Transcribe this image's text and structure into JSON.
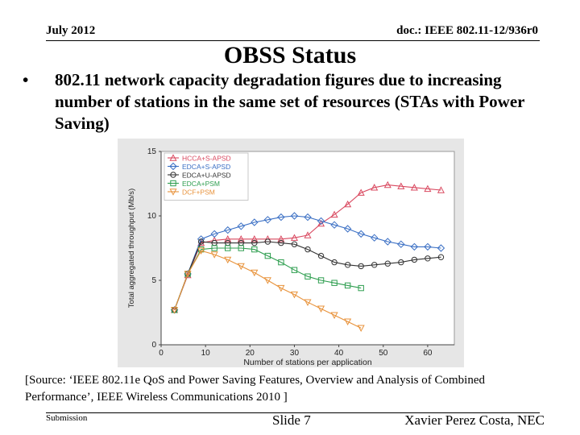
{
  "header": {
    "date": "July 2012",
    "doc": "doc.: IEEE 802.11-12/936r0"
  },
  "slide": {
    "title": "OBSS Status",
    "bullet_char": "•",
    "bullet": "802.11 network capacity degradation figures due to increasing number of stations in the same set of resources (STAs with Power Saving)",
    "source": "[Source: ‘IEEE 802.11e QoS and Power Saving Features, Overview and Analysis of Combined Performance’, IEEE Wireless Communications 2010 ]"
  },
  "footer": {
    "submission": "Submission",
    "slide": "Slide 7",
    "author": "Xavier Perez Costa, NEC"
  },
  "chart_data": {
    "type": "line",
    "xlabel": "Number of stations per application",
    "ylabel": "Total aggregated throughput (Mb/s)",
    "xlim": [
      0,
      66
    ],
    "ylim": [
      0,
      15
    ],
    "xticks": [
      0,
      10,
      20,
      30,
      40,
      50,
      60
    ],
    "yticks": [
      0,
      5,
      10,
      15
    ],
    "legend_position": "top-left",
    "series": [
      {
        "name": "HCCA+S-APSD",
        "color": "#d9485f",
        "marker": "triangle-up",
        "x": [
          3,
          6,
          9,
          12,
          15,
          18,
          21,
          24,
          27,
          30,
          33,
          36,
          39,
          42,
          45,
          48,
          51,
          54,
          57,
          60,
          63
        ],
        "y": [
          2.7,
          5.4,
          7.9,
          8.1,
          8.2,
          8.2,
          8.2,
          8.2,
          8.2,
          8.3,
          8.5,
          9.4,
          10.1,
          10.9,
          11.8,
          12.2,
          12.4,
          12.3,
          12.2,
          12.1,
          12.0
        ]
      },
      {
        "name": "EDCA+S-APSD",
        "color": "#3a6fc4",
        "marker": "diamond",
        "x": [
          3,
          6,
          9,
          12,
          15,
          18,
          21,
          24,
          27,
          30,
          33,
          36,
          39,
          42,
          45,
          48,
          51,
          54,
          57,
          60,
          63
        ],
        "y": [
          2.7,
          5.5,
          8.2,
          8.6,
          8.9,
          9.2,
          9.5,
          9.7,
          9.9,
          10.0,
          9.9,
          9.6,
          9.3,
          9.0,
          8.6,
          8.3,
          8.0,
          7.8,
          7.6,
          7.6,
          7.5
        ]
      },
      {
        "name": "EDCA+U-APSD",
        "color": "#333333",
        "marker": "circle",
        "x": [
          3,
          6,
          9,
          12,
          15,
          18,
          21,
          24,
          27,
          30,
          33,
          36,
          39,
          42,
          45,
          48,
          51,
          54,
          57,
          60,
          63
        ],
        "y": [
          2.7,
          5.5,
          8.0,
          7.9,
          7.9,
          7.9,
          7.9,
          8.0,
          7.9,
          7.8,
          7.4,
          6.9,
          6.4,
          6.2,
          6.1,
          6.2,
          6.3,
          6.4,
          6.6,
          6.7,
          6.8
        ]
      },
      {
        "name": "EDCA+PSM",
        "color": "#2e9e4f",
        "marker": "square",
        "x": [
          3,
          6,
          9,
          12,
          15,
          18,
          21,
          24,
          27,
          30,
          33,
          36,
          39,
          42,
          45
        ],
        "y": [
          2.7,
          5.5,
          7.4,
          7.5,
          7.5,
          7.5,
          7.4,
          6.9,
          6.4,
          5.8,
          5.3,
          5.0,
          4.8,
          4.6,
          4.4
        ]
      },
      {
        "name": "DCF+PSM",
        "color": "#e8923a",
        "marker": "triangle-down",
        "x": [
          3,
          6,
          9,
          12,
          15,
          18,
          21,
          24,
          27,
          30,
          33,
          36,
          39,
          42,
          45
        ],
        "y": [
          2.7,
          5.5,
          7.3,
          7.0,
          6.6,
          6.1,
          5.6,
          5.0,
          4.4,
          3.9,
          3.3,
          2.8,
          2.3,
          1.8,
          1.3
        ]
      }
    ]
  }
}
